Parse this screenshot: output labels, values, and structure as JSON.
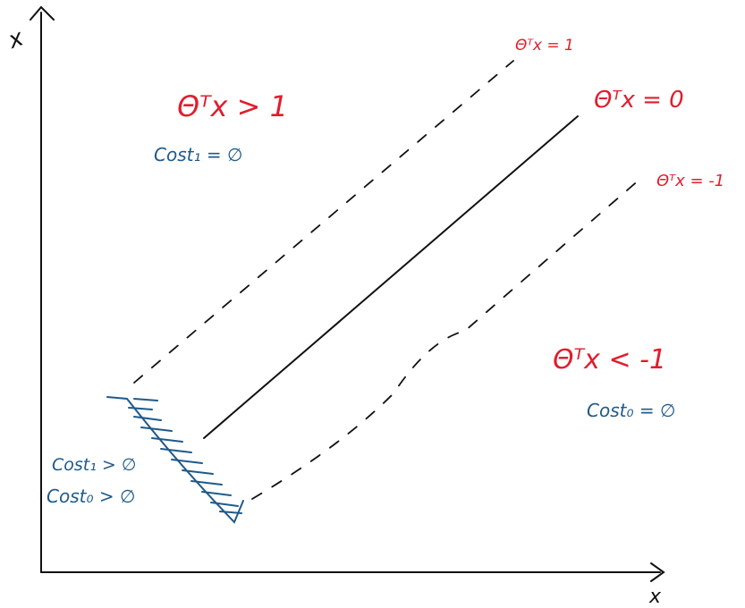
{
  "axes": {
    "y_label": "x",
    "x_label": "x"
  },
  "boundaries": {
    "upper_margin": "Θᵀx = 1",
    "decision_boundary": "Θᵀx = 0",
    "lower_margin": "Θᵀx = -1"
  },
  "regions": {
    "upper": {
      "condition": "Θᵀx > 1",
      "cost": "Cost₁ = ∅"
    },
    "lower": {
      "condition": "Θᵀx < -1",
      "cost": "Cost₀ = ∅"
    },
    "margin": {
      "cost_1": "Cost₁ > ∅",
      "cost_0": "Cost₀ > ∅"
    }
  },
  "colors": {
    "ink": "#111111",
    "red": "#e11d2e",
    "blue": "#1f5a8a"
  }
}
